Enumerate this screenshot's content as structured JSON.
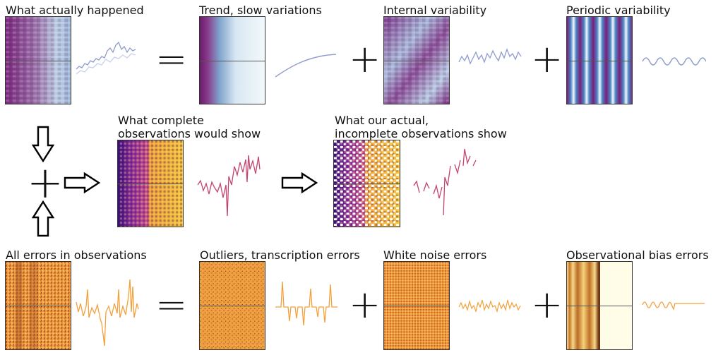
{
  "row1": {
    "titles": [
      "What actually happened",
      "Trend, slow variations",
      "Internal variability",
      "Periodic variability"
    ],
    "operators": [
      "=",
      "+",
      "+"
    ],
    "colors": {
      "trace": "#8f9ccc",
      "map_dark": "#7b1e7a",
      "map_light": "#eef5fa"
    }
  },
  "row2": {
    "titles": [
      "What complete",
      "observations would show",
      "What our actual,",
      "incomplete observations show"
    ],
    "colors": {
      "trace": "#c4436e",
      "map_a": "#3b0d7a",
      "map_b": "#f2a33a"
    }
  },
  "row3": {
    "titles": [
      "All errors in observations",
      "Outliers, transcription errors",
      "White noise errors",
      "Observational bias errors"
    ],
    "operators": [
      "=",
      "+",
      "+"
    ],
    "colors": {
      "trace": "#f4a03a",
      "map": "#f0a040"
    }
  },
  "center_operator": "+"
}
